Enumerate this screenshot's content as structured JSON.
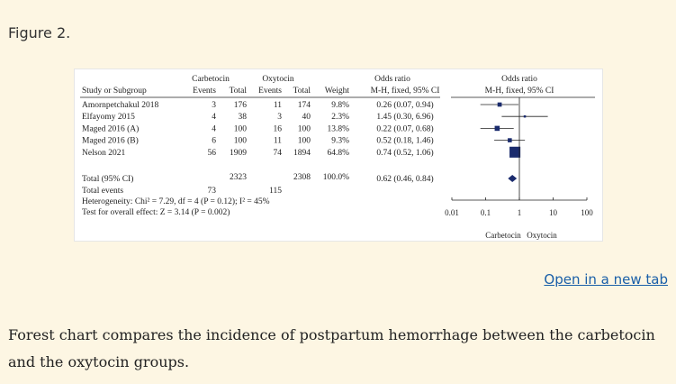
{
  "figure_label": "Figure 2.",
  "open_link": "Open in a new tab",
  "caption": "Forest chart compares the incidence of postpartum hemorrhage between the carbetocin and the oxytocin groups.",
  "chart_data": {
    "type": "forest",
    "headers": {
      "study": "Study or Subgroup",
      "group1": "Carbetocin",
      "group2": "Oxytocin",
      "events": "Events",
      "total": "Total",
      "weight": "Weight",
      "or_title": "Odds ratio",
      "or_method": "M-H, fixed, 95% CI",
      "plot_title": "Odds ratio",
      "plot_method": "M-H, fixed, 95% CI"
    },
    "studies": [
      {
        "name": "Amornpetchakul 2018",
        "e1": "3",
        "t1": "176",
        "e2": "11",
        "t2": "174",
        "weight": "9.8%",
        "ci_text": "0.26 (0.07, 0.94)",
        "or": 0.26,
        "lo": 0.07,
        "hi": 0.94,
        "w": 9.8
      },
      {
        "name": "Elfayomy 2015",
        "e1": "4",
        "t1": "38",
        "e2": "3",
        "t2": "40",
        "weight": "2.3%",
        "ci_text": "1.45 (0.30, 6.96)",
        "or": 1.45,
        "lo": 0.3,
        "hi": 6.96,
        "w": 2.3
      },
      {
        "name": "Maged 2016 (A)",
        "e1": "4",
        "t1": "100",
        "e2": "16",
        "t2": "100",
        "weight": "13.8%",
        "ci_text": "0.22 (0.07, 0.68)",
        "or": 0.22,
        "lo": 0.07,
        "hi": 0.68,
        "w": 13.8
      },
      {
        "name": "Maged 2016 (B)",
        "e1": "6",
        "t1": "100",
        "e2": "11",
        "t2": "100",
        "weight": "9.3%",
        "ci_text": "0.52 (0.18, 1.46)",
        "or": 0.52,
        "lo": 0.18,
        "hi": 1.46,
        "w": 9.3
      },
      {
        "name": "Nelson 2021",
        "e1": "56",
        "t1": "1909",
        "e2": "74",
        "t2": "1894",
        "weight": "64.8%",
        "ci_text": "0.74 (0.52, 1.06)",
        "or": 0.74,
        "lo": 0.52,
        "hi": 1.06,
        "w": 64.8
      }
    ],
    "total": {
      "name": "Total (95% CI)",
      "t1": "2323",
      "t2": "2308",
      "weight": "100.0%",
      "ci_text": "0.62 (0.46, 0.84)",
      "or": 0.62,
      "lo": 0.46,
      "hi": 0.84
    },
    "total_events": {
      "name": "Total events",
      "e1": "73",
      "e2": "115"
    },
    "heterogeneity": "Heterogeneity: Chi² = 7.29, df = 4 (P = 0.12); I² = 45%",
    "overall_effect": "Test for overall effect: Z = 3.14 (P = 0.002)",
    "x_scale": "log",
    "x_ticks": [
      0.01,
      0.1,
      1,
      10,
      100
    ],
    "x_tick_labels": [
      "0.01",
      "0.1",
      "1",
      "10",
      "100"
    ],
    "favours_left": "Carbetocin",
    "favours_right": "Oxytocin"
  }
}
